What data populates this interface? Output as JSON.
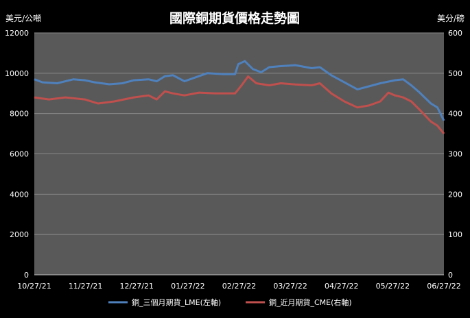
{
  "chart_data": {
    "type": "line",
    "title": "國際銅期貨價格走勢圖",
    "y_left_label": "美元/公噸",
    "y_right_label": "美分/磅",
    "x_tick_labels": [
      "10/27/21",
      "11/27/21",
      "12/27/21",
      "01/27/22",
      "02/27/22",
      "03/27/22",
      "04/27/22",
      "05/27/22",
      "06/27/22"
    ],
    "y_left_ticks": [
      "0",
      "2000",
      "4000",
      "6000",
      "8000",
      "10000",
      "12000"
    ],
    "y_right_ticks": [
      "0",
      "100",
      "200",
      "300",
      "400",
      "500",
      "600"
    ],
    "ylim_left": [
      0,
      12000
    ],
    "ylim_right": [
      0,
      600
    ],
    "grid": true,
    "legend_position": "bottom",
    "colors": {
      "background": "#000000",
      "plot_area": "#595959",
      "gridline": "#8a8a8a",
      "lme": "#4f81bd",
      "cme": "#c0504d"
    },
    "series": [
      {
        "name": "銅_三個月期貨_LME(左軸)",
        "axis": "left",
        "points": [
          [
            "2021-10-27",
            9700
          ],
          [
            "2021-11-01",
            9550
          ],
          [
            "2021-11-10",
            9500
          ],
          [
            "2021-11-20",
            9700
          ],
          [
            "2021-11-27",
            9650
          ],
          [
            "2021-12-03",
            9550
          ],
          [
            "2021-12-12",
            9450
          ],
          [
            "2021-12-20",
            9500
          ],
          [
            "2021-12-27",
            9650
          ],
          [
            "2022-01-05",
            9700
          ],
          [
            "2022-01-10",
            9600
          ],
          [
            "2022-01-15",
            9850
          ],
          [
            "2022-01-20",
            9900
          ],
          [
            "2022-01-27",
            9600
          ],
          [
            "2022-02-03",
            9800
          ],
          [
            "2022-02-10",
            10000
          ],
          [
            "2022-02-20",
            9950
          ],
          [
            "2022-02-27",
            9950
          ],
          [
            "2022-03-01",
            10450
          ],
          [
            "2022-03-05",
            10600
          ],
          [
            "2022-03-10",
            10200
          ],
          [
            "2022-03-15",
            10050
          ],
          [
            "2022-03-20",
            10300
          ],
          [
            "2022-03-27",
            10350
          ],
          [
            "2022-04-05",
            10400
          ],
          [
            "2022-04-15",
            10250
          ],
          [
            "2022-04-20",
            10300
          ],
          [
            "2022-04-27",
            9900
          ],
          [
            "2022-05-05",
            9550
          ],
          [
            "2022-05-13",
            9200
          ],
          [
            "2022-05-20",
            9350
          ],
          [
            "2022-05-27",
            9500
          ],
          [
            "2022-06-05",
            9650
          ],
          [
            "2022-06-10",
            9700
          ],
          [
            "2022-06-15",
            9400
          ],
          [
            "2022-06-20",
            9050
          ],
          [
            "2022-06-27",
            8500
          ],
          [
            "2022-07-01",
            8300
          ],
          [
            "2022-07-05",
            7650
          ]
        ]
      },
      {
        "name": "銅_近月期貨_CME(右軸)",
        "axis": "right",
        "points": [
          [
            "2021-10-27",
            440
          ],
          [
            "2021-11-05",
            435
          ],
          [
            "2021-11-15",
            440
          ],
          [
            "2021-11-27",
            435
          ],
          [
            "2021-12-05",
            425
          ],
          [
            "2021-12-15",
            430
          ],
          [
            "2021-12-27",
            440
          ],
          [
            "2022-01-05",
            445
          ],
          [
            "2022-01-10",
            435
          ],
          [
            "2022-01-15",
            455
          ],
          [
            "2022-01-20",
            450
          ],
          [
            "2022-01-27",
            445
          ],
          [
            "2022-02-05",
            452
          ],
          [
            "2022-02-15",
            450
          ],
          [
            "2022-02-27",
            450
          ],
          [
            "2022-03-03",
            470
          ],
          [
            "2022-03-07",
            492
          ],
          [
            "2022-03-12",
            475
          ],
          [
            "2022-03-20",
            470
          ],
          [
            "2022-03-27",
            475
          ],
          [
            "2022-04-05",
            472
          ],
          [
            "2022-04-15",
            470
          ],
          [
            "2022-04-20",
            475
          ],
          [
            "2022-04-27",
            450
          ],
          [
            "2022-05-05",
            430
          ],
          [
            "2022-05-13",
            415
          ],
          [
            "2022-05-20",
            420
          ],
          [
            "2022-05-27",
            430
          ],
          [
            "2022-06-01",
            452
          ],
          [
            "2022-06-05",
            445
          ],
          [
            "2022-06-10",
            440
          ],
          [
            "2022-06-15",
            430
          ],
          [
            "2022-06-20",
            410
          ],
          [
            "2022-06-27",
            380
          ],
          [
            "2022-07-01",
            370
          ],
          [
            "2022-07-05",
            350
          ]
        ]
      }
    ]
  }
}
